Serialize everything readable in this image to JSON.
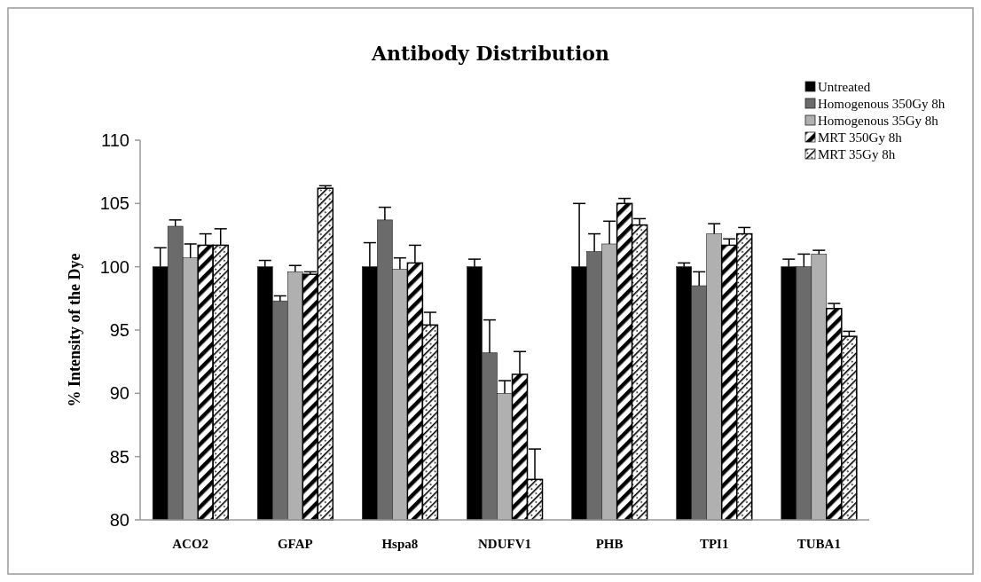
{
  "chart_data": {
    "type": "bar",
    "title": "Antibody Distribution",
    "ylabel": "% Intensity of the Dye",
    "categories": [
      "ACO2",
      "GFAP",
      "Hspa8",
      "NDUFV1",
      "PHB",
      "TPI1",
      "TUBA1"
    ],
    "series": [
      {
        "name": "Untreated",
        "color": "#000000",
        "values": [
          100,
          100,
          100,
          100,
          100,
          100,
          100
        ],
        "errors": [
          1.5,
          0.5,
          1.9,
          0.6,
          5.0,
          0.3,
          0.6
        ]
      },
      {
        "name": "Homogenous 350Gy 8h",
        "color": "#6b6b6b",
        "values": [
          103.2,
          97.3,
          103.7,
          93.2,
          101.2,
          98.5,
          100
        ],
        "errors": [
          0.5,
          0.4,
          1.0,
          2.6,
          1.4,
          1.1,
          1.0
        ]
      },
      {
        "name": "Homogenous 35Gy 8h",
        "color": "#b0b0b0",
        "values": [
          100.7,
          99.6,
          99.8,
          90.0,
          101.8,
          102.6,
          101.0
        ],
        "errors": [
          1.1,
          0.5,
          0.9,
          1.0,
          1.8,
          0.8,
          0.3
        ]
      },
      {
        "name": "MRT 350Gy 8h",
        "color": "#000000",
        "values": [
          101.7,
          99.4,
          100.3,
          91.5,
          105.0,
          101.7,
          96.7
        ],
        "errors": [
          0.9,
          0.2,
          1.4,
          1.8,
          0.4,
          0.5,
          0.4
        ]
      },
      {
        "name": "MRT 35Gy 8h",
        "color": "#000000",
        "values": [
          101.7,
          106.2,
          95.4,
          83.2,
          103.3,
          102.6,
          94.5
        ],
        "errors": [
          1.3,
          0.2,
          1.0,
          2.4,
          0.5,
          0.5,
          0.4
        ]
      }
    ],
    "ylim": [
      80,
      110
    ],
    "yticks": [
      80,
      85,
      90,
      95,
      100,
      105,
      110
    ],
    "grid": false,
    "legend": "top right"
  }
}
